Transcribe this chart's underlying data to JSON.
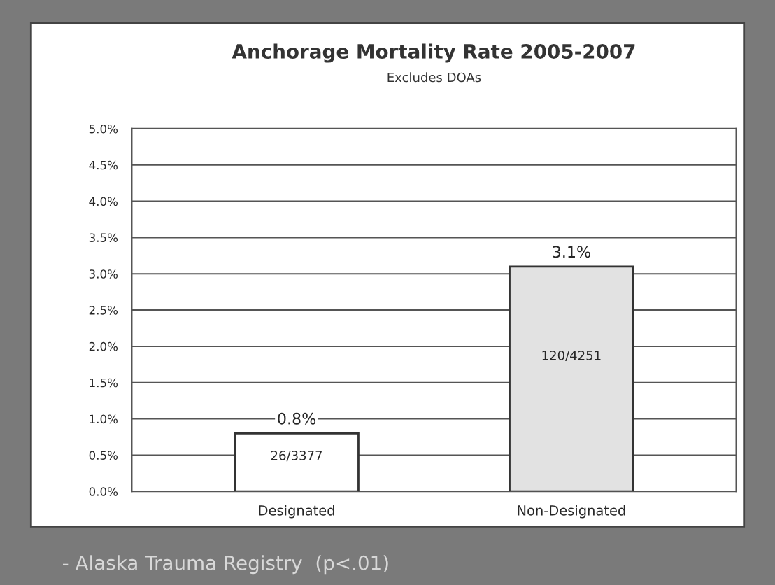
{
  "chart_data": {
    "type": "bar",
    "title": "Anchorage Mortality Rate 2005-2007",
    "subtitle": "Excludes DOAs",
    "categories": [
      "Designated",
      "Non-Designated"
    ],
    "values": [
      0.8,
      3.1
    ],
    "colors": [
      "#ffffff",
      "#e2e2e2"
    ],
    "value_labels": [
      "0.8%",
      "3.1%"
    ],
    "ylim": [
      0,
      5
    ],
    "yticks": [
      {
        "value": 0,
        "label": "0.0%"
      },
      {
        "value": 0.5,
        "label": "0.5%"
      },
      {
        "value": 1,
        "label": "1.0%"
      },
      {
        "value": 1.5,
        "label": "1.5%"
      },
      {
        "value": 2,
        "label": "2.0%"
      },
      {
        "value": 2.5,
        "label": "2.5%"
      },
      {
        "value": 3,
        "label": "3.0%"
      },
      {
        "value": 3.5,
        "label": "3.5%"
      },
      {
        "value": 4,
        "label": "4.0%"
      },
      {
        "value": 4.5,
        "label": "4.5%"
      },
      {
        "value": 5,
        "label": "5.0%"
      }
    ],
    "grid": "y",
    "annotations": [
      "26/3377",
      "120/4251",
      "- Alaska Trauma Registry  (p<.01)"
    ]
  }
}
